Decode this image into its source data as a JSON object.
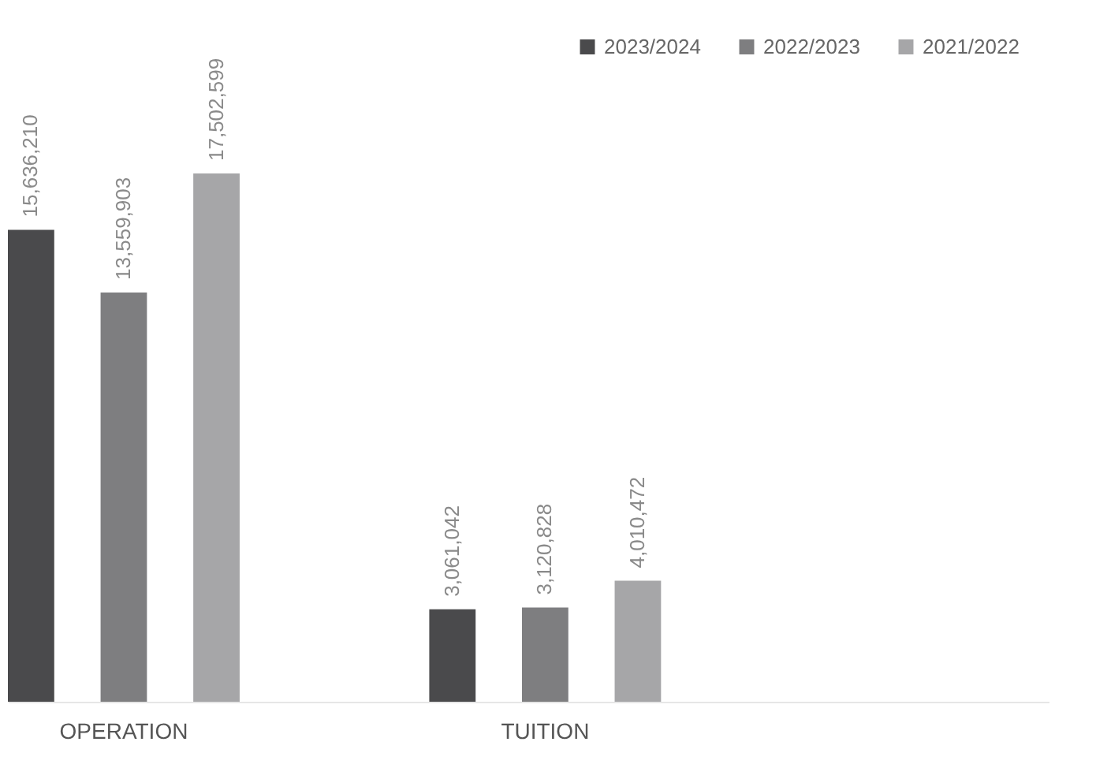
{
  "chart_data": {
    "type": "bar",
    "categories": [
      "OPERATION",
      "TUITION"
    ],
    "series": [
      {
        "name": "2023/2024",
        "color": "#4a4a4c",
        "values": [
          15636210,
          3061042
        ],
        "value_labels": [
          "15,636,210",
          "3,061,042"
        ]
      },
      {
        "name": "2022/2023",
        "color": "#7e7e80",
        "values": [
          13559903,
          3120828
        ],
        "value_labels": [
          "13,559,903",
          "3,120,828"
        ]
      },
      {
        "name": "2021/2022",
        "color": "#a6a6a8",
        "values": [
          17502599,
          4010472
        ],
        "value_labels": [
          "17,502,599",
          "4,010,472"
        ]
      }
    ],
    "legend": "top right",
    "grid": false
  }
}
